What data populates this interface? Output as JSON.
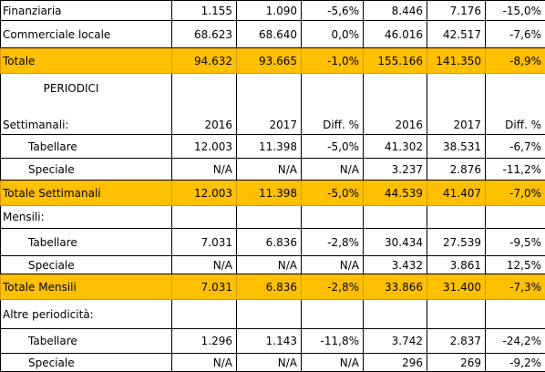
{
  "table": {
    "heading": "PERIODICI",
    "rows": [
      {
        "label": "Finanziaria",
        "cells": [
          "1.155",
          "1.090",
          "-5,6%",
          "8.446",
          "7.176",
          "-15,0%"
        ]
      },
      {
        "label": "Commerciale locale",
        "cells": [
          "68.623",
          "68.640",
          "0,0%",
          "46.016",
          "42.517",
          "-7,6%"
        ]
      },
      {
        "label": "Totale",
        "cells": [
          "94.632",
          "93.665",
          "-1,0%",
          "155.166",
          "141.350",
          "-8,9%"
        ]
      },
      {
        "label": "Settimanali:",
        "cells": [
          "2016",
          "2017",
          "Diff. %",
          "2016",
          "2017",
          "Diff. %"
        ]
      },
      {
        "label": "Tabellare",
        "cells": [
          "12.003",
          "11.398",
          "-5,0%",
          "41.302",
          "38.531",
          "-6,7%"
        ]
      },
      {
        "label": "Speciale",
        "cells": [
          "N/A",
          "N/A",
          "N/A",
          "3.237",
          "2.876",
          "-11,2%"
        ]
      },
      {
        "label": "Totale Settimanali",
        "cells": [
          "12.003",
          "11.398",
          "-5,0%",
          "44.539",
          "41.407",
          "-7,0%"
        ]
      },
      {
        "label": "Mensili:"
      },
      {
        "label": "Tabellare",
        "cells": [
          "7.031",
          "6.836",
          "-2,8%",
          "30.434",
          "27.539",
          "-9,5%"
        ]
      },
      {
        "label": "Speciale",
        "cells": [
          "N/A",
          "N/A",
          "N/A",
          "3.432",
          "3.861",
          "12,5%"
        ]
      },
      {
        "label": "Totale Mensili",
        "cells": [
          "7.031",
          "6.836",
          "-2,8%",
          "33.866",
          "31.400",
          "-7,3%"
        ]
      },
      {
        "label": "Altre periodicità:"
      },
      {
        "label": "Tabellare",
        "cells": [
          "1.296",
          "1.143",
          "-11,8%",
          "3.742",
          "2.837",
          "-24,2%"
        ]
      },
      {
        "label": "Speciale",
        "cells": [
          "N/A",
          "N/A",
          "N/A",
          "296",
          "269",
          "-9,2%"
        ]
      }
    ]
  }
}
